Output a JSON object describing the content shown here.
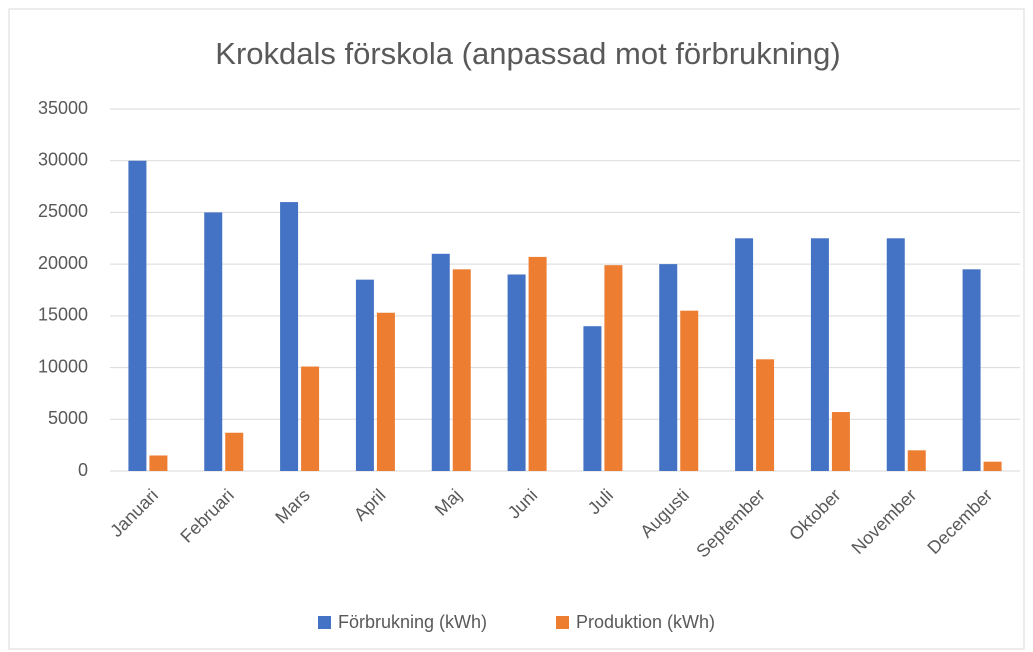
{
  "chart_data": {
    "type": "bar",
    "title": "Krokdals förskola (anpassad mot förbrukning)",
    "categories": [
      "Januari",
      "Februari",
      "Mars",
      "April",
      "Maj",
      "Juni",
      "Juli",
      "Augusti",
      "September",
      "Oktober",
      "November",
      "December"
    ],
    "series": [
      {
        "name": "Förbrukning (kWh)",
        "color": "#4472c4",
        "values": [
          30000,
          25000,
          26000,
          18500,
          21000,
          19000,
          14000,
          20000,
          22500,
          22500,
          22500,
          19500
        ]
      },
      {
        "name": "Produktion (kWh)",
        "color": "#ed7d31",
        "values": [
          1500,
          3700,
          10100,
          15300,
          19500,
          20700,
          19900,
          15500,
          10800,
          5700,
          2000,
          900
        ]
      }
    ],
    "ylim": [
      0,
      35000
    ],
    "yticks": [
      0,
      5000,
      10000,
      15000,
      20000,
      25000,
      30000,
      35000
    ],
    "grid": true,
    "legend": "bottom"
  }
}
